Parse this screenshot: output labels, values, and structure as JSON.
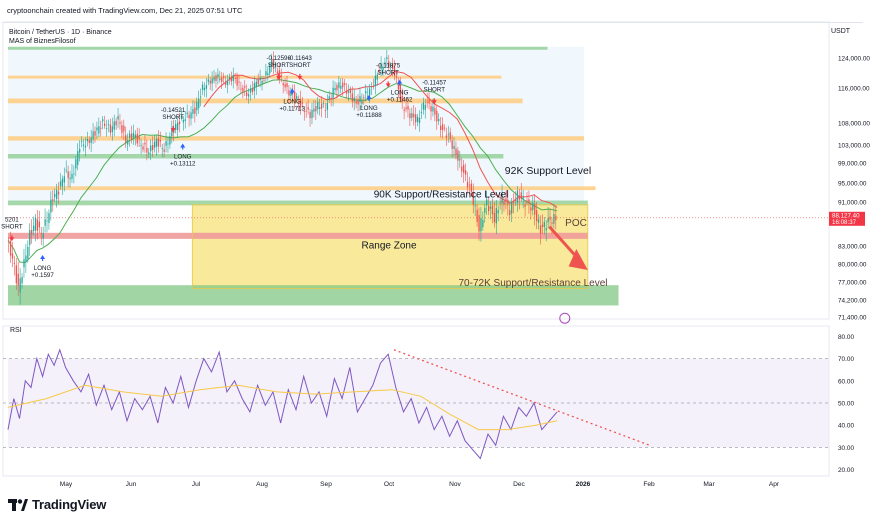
{
  "header": {
    "caption": "cryptoonchain created with TradingView.com, Dec 21, 2025 07:51 UTC",
    "symbol_line": "Bitcoin / TetherUS · 1D · Binance",
    "indicator_line": "MAS of BiznesFilosof",
    "currency": "USDT"
  },
  "footer": {
    "brand": "TradingView"
  },
  "colors": {
    "up_candle": "#26a69a",
    "down_candle": "#ef5350",
    "ma_line": "#4caf50",
    "down_trend_line": "#ef5350",
    "rsi_line": "#7e57c2",
    "rsi_ma": "#f7c948",
    "range_zone": "#f5e27a",
    "support_green": "#81c784",
    "support_red": "#ef9a9a",
    "orange_level": "#ffcc80"
  },
  "chart_data": [
    {
      "type": "candlestick",
      "title": "Bitcoin / TetherUS · 1D · Binance",
      "y_ticks": [
        "124,000.00",
        "116,000.00",
        "108,000.00",
        "103,000.00",
        "99,000.00",
        "95,000.00",
        "91,000.00",
        "83,000.00",
        "80,000.00",
        "77,000.00",
        "74,200.00",
        "71,400.00"
      ],
      "y_tick_values": [
        124000,
        116000,
        108000,
        103000,
        99000,
        95000,
        91000,
        83000,
        80000,
        77000,
        74200,
        71400
      ],
      "x_ticks": [
        "May",
        "Jun",
        "Jul",
        "Aug",
        "Sep",
        "Oct",
        "Nov",
        "Dec",
        "2026",
        "Feb",
        "Mar",
        "Apr"
      ],
      "price_label": "88,127.40",
      "countdown_label": "16:08:37",
      "close_series": [
        [
          0,
          84000
        ],
        [
          3,
          81000
        ],
        [
          6,
          76000
        ],
        [
          9,
          80000
        ],
        [
          12,
          85000
        ],
        [
          15,
          87500
        ],
        [
          18,
          85000
        ],
        [
          21,
          88000
        ],
        [
          24,
          92000
        ],
        [
          27,
          93500
        ],
        [
          30,
          97000
        ],
        [
          34,
          96000
        ],
        [
          38,
          103000
        ],
        [
          42,
          103500
        ],
        [
          46,
          106000
        ],
        [
          50,
          108000
        ],
        [
          54,
          106500
        ],
        [
          58,
          109000
        ],
        [
          62,
          104000
        ],
        [
          66,
          105500
        ],
        [
          70,
          103000
        ],
        [
          74,
          101500
        ],
        [
          78,
          104000
        ],
        [
          82,
          102000
        ],
        [
          86,
          106000
        ],
        [
          90,
          108500
        ],
        [
          94,
          109500
        ],
        [
          98,
          111000
        ],
        [
          102,
          116000
        ],
        [
          106,
          118000
        ],
        [
          110,
          119000
        ],
        [
          114,
          117500
        ],
        [
          118,
          119000
        ],
        [
          122,
          116000
        ],
        [
          126,
          114500
        ],
        [
          130,
          117500
        ],
        [
          134,
          118500
        ],
        [
          138,
          123000
        ],
        [
          142,
          119000
        ],
        [
          146,
          115500
        ],
        [
          150,
          114000
        ],
        [
          154,
          111500
        ],
        [
          158,
          110000
        ],
        [
          162,
          112000
        ],
        [
          166,
          111500
        ],
        [
          170,
          115500
        ],
        [
          174,
          117000
        ],
        [
          178,
          115000
        ],
        [
          182,
          112500
        ],
        [
          186,
          114000
        ],
        [
          190,
          116000
        ],
        [
          194,
          121000
        ],
        [
          198,
          123500
        ],
        [
          202,
          120000
        ],
        [
          206,
          112000
        ],
        [
          210,
          110000
        ],
        [
          214,
          108500
        ],
        [
          218,
          113000
        ],
        [
          222,
          111000
        ],
        [
          226,
          107000
        ],
        [
          230,
          105000
        ],
        [
          234,
          101000
        ],
        [
          238,
          97000
        ],
        [
          242,
          93000
        ],
        [
          246,
          86000
        ],
        [
          250,
          91000
        ],
        [
          254,
          88000
        ],
        [
          258,
          92000
        ],
        [
          262,
          89500
        ],
        [
          266,
          92500
        ],
        [
          270,
          91000
        ],
        [
          274,
          90000
        ],
        [
          278,
          86000
        ],
        [
          282,
          87500
        ],
        [
          286,
          88100
        ]
      ],
      "trade_signals": [
        {
          "label": "LONG +0.1597",
          "dir": "long"
        },
        {
          "label": "-0.14521 SHORT",
          "dir": "short"
        },
        {
          "label": "LONG +0.13112",
          "dir": "long"
        },
        {
          "label": "-0.12596 SHORT",
          "dir": "short"
        },
        {
          "label": "-0.11643 SHORT",
          "dir": "short"
        },
        {
          "label": "LONG +0.11713",
          "dir": "long"
        },
        {
          "label": "LONG +0.11888",
          "dir": "long"
        },
        {
          "label": "-0.11875 SHORT",
          "dir": "short"
        },
        {
          "label": "-0.11457 SHORT",
          "dir": "short"
        },
        {
          "label": "LONG +0.11462",
          "dir": "long"
        },
        {
          "label": "5201 SHORT",
          "dir": "short"
        }
      ],
      "annotations": [
        "92K Support Level",
        "90K Support/Resistance Level",
        "Range Zone",
        "70-72K Support/Resistance Level",
        "POC"
      ],
      "zones": [
        {
          "name": "Range Zone",
          "from": 76000,
          "to": 90500
        },
        {
          "name": "70-72K Support/Resistance Level",
          "from": 73300,
          "to": 76500
        },
        {
          "name": "red band",
          "from": 84300,
          "to": 85400
        },
        {
          "name": "90K level",
          "from": 90400,
          "to": 91300
        },
        {
          "name": "92K level",
          "from": 93500,
          "to": 94300
        },
        {
          "name": "level 99K",
          "from": 100000,
          "to": 101000
        },
        {
          "name": "level 103K",
          "from": 104000,
          "to": 105000
        },
        {
          "name": "level 113K",
          "from": 112500,
          "to": 113600
        },
        {
          "name": "level 118K",
          "from": 118500,
          "to": 119300
        },
        {
          "name": "level 126K",
          "from": 126200,
          "to": 127000
        }
      ]
    },
    {
      "type": "line",
      "title": "RSI",
      "y_ticks": [
        "80.00",
        "70.00",
        "60.00",
        "50.00",
        "40.00",
        "30.00",
        "20.00"
      ],
      "y_tick_values": [
        80,
        70,
        60,
        50,
        40,
        30,
        20
      ],
      "ylim": [
        18,
        82
      ],
      "levels": [
        70,
        50,
        30
      ],
      "rsi_series": [
        [
          0,
          38
        ],
        [
          3,
          52
        ],
        [
          6,
          43
        ],
        [
          9,
          60
        ],
        [
          12,
          57
        ],
        [
          15,
          70
        ],
        [
          18,
          62
        ],
        [
          21,
          72
        ],
        [
          24,
          67
        ],
        [
          27,
          74
        ],
        [
          30,
          66
        ],
        [
          34,
          60
        ],
        [
          38,
          55
        ],
        [
          42,
          63
        ],
        [
          46,
          49
        ],
        [
          50,
          58
        ],
        [
          54,
          47
        ],
        [
          58,
          55
        ],
        [
          62,
          42
        ],
        [
          66,
          52
        ],
        [
          70,
          47
        ],
        [
          74,
          53
        ],
        [
          78,
          41
        ],
        [
          82,
          57
        ],
        [
          86,
          50
        ],
        [
          90,
          62
        ],
        [
          94,
          48
        ],
        [
          98,
          60
        ],
        [
          102,
          70
        ],
        [
          106,
          64
        ],
        [
          110,
          73
        ],
        [
          114,
          55
        ],
        [
          118,
          60
        ],
        [
          122,
          52
        ],
        [
          126,
          46
        ],
        [
          130,
          58
        ],
        [
          134,
          49
        ],
        [
          138,
          55
        ],
        [
          142,
          41
        ],
        [
          146,
          56
        ],
        [
          150,
          47
        ],
        [
          154,
          62
        ],
        [
          158,
          50
        ],
        [
          162,
          55
        ],
        [
          166,
          44
        ],
        [
          170,
          61
        ],
        [
          174,
          52
        ],
        [
          178,
          66
        ],
        [
          182,
          46
        ],
        [
          186,
          52
        ],
        [
          190,
          58
        ],
        [
          194,
          68
        ],
        [
          198,
          72
        ],
        [
          202,
          57
        ],
        [
          206,
          46
        ],
        [
          210,
          52
        ],
        [
          214,
          41
        ],
        [
          218,
          48
        ],
        [
          222,
          38
        ],
        [
          226,
          44
        ],
        [
          230,
          35
        ],
        [
          234,
          42
        ],
        [
          238,
          33
        ],
        [
          242,
          29
        ],
        [
          246,
          25
        ],
        [
          250,
          36
        ],
        [
          254,
          31
        ],
        [
          258,
          44
        ],
        [
          262,
          38
        ],
        [
          266,
          48
        ],
        [
          270,
          44
        ],
        [
          274,
          50
        ],
        [
          278,
          38
        ],
        [
          282,
          42
        ],
        [
          286,
          46
        ]
      ],
      "rsi_ma_series": [
        [
          0,
          48
        ],
        [
          20,
          52
        ],
        [
          40,
          58
        ],
        [
          60,
          55
        ],
        [
          80,
          53
        ],
        [
          100,
          56
        ],
        [
          120,
          58
        ],
        [
          140,
          55
        ],
        [
          160,
          54
        ],
        [
          180,
          55
        ],
        [
          200,
          56
        ],
        [
          215,
          53
        ],
        [
          230,
          45
        ],
        [
          245,
          38
        ],
        [
          260,
          38
        ],
        [
          275,
          40
        ],
        [
          286,
          42
        ]
      ]
    }
  ]
}
